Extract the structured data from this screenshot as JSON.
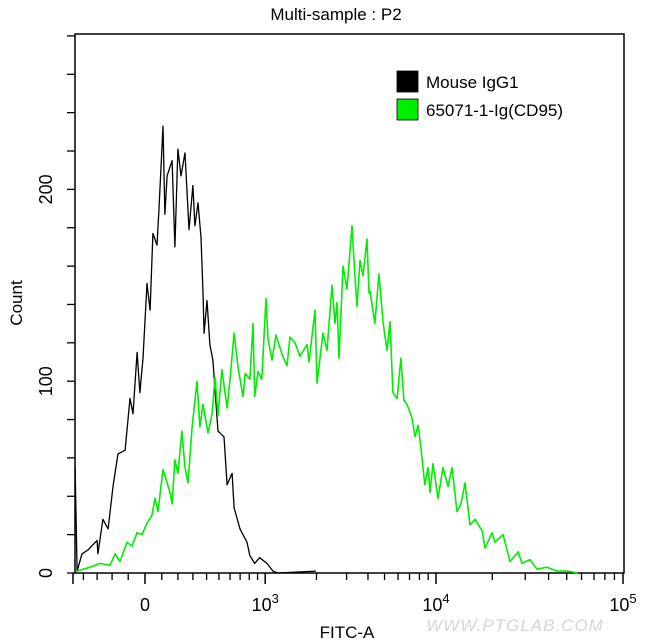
{
  "chart_data": {
    "type": "line",
    "title": "Multi-sample : P2",
    "xlabel": "FITC-A",
    "ylabel": "Count",
    "x_scale": "logicle",
    "xlim": [
      -466,
      100000
    ],
    "ylim": [
      0,
      281
    ],
    "x_ticks": [
      {
        "value": 0,
        "base": "0",
        "exp": ""
      },
      {
        "value": 1000,
        "base": "10",
        "exp": "3"
      },
      {
        "value": 10000,
        "base": "10",
        "exp": "4"
      },
      {
        "value": 100000,
        "base": "10",
        "exp": "5"
      }
    ],
    "y_ticks": [
      {
        "value": 0,
        "label": "0"
      },
      {
        "value": 100,
        "label": "100"
      },
      {
        "value": 200,
        "label": "200"
      }
    ],
    "grid": false,
    "legend_position": "top-right",
    "series": [
      {
        "name": "Mouse IgG1",
        "color": "#000000",
        "x": [
          -466,
          -450,
          -411,
          -366,
          -300,
          -294,
          -260,
          -226,
          -194,
          -163,
          -119,
          -89,
          -71,
          -47,
          -30,
          -12,
          12,
          30,
          47,
          71,
          83,
          107,
          119,
          132,
          163,
          181,
          200,
          220,
          246,
          273,
          300,
          314,
          336,
          358,
          373,
          381,
          403,
          426,
          450,
          492,
          544,
          572,
          619,
          639,
          699,
          775,
          808,
          865,
          926,
          1027,
          1114,
          1191,
          1987
        ],
        "y": [
          55,
          1,
          10,
          12,
          17,
          10,
          28,
          23,
          45,
          62,
          64,
          91,
          83,
          115,
          94,
          112,
          151,
          137,
          177,
          171,
          190,
          233,
          187,
          207,
          215,
          170,
          221,
          207,
          219,
          179,
          202,
          181,
          193,
          175,
          146,
          125,
          142,
          119,
          111,
          74,
          71,
          46,
          52,
          34,
          23,
          16,
          9,
          5,
          8,
          5,
          1,
          0,
          1
        ]
      },
      {
        "name": "65071-1-Ig(CD95)",
        "color": "#00ee00",
        "x": [
          -450,
          -350,
          -280,
          -213,
          -181,
          -150,
          -107,
          -77,
          -47,
          -18,
          12,
          41,
          59,
          77,
          107,
          150,
          163,
          181,
          200,
          226,
          246,
          266,
          294,
          329,
          350,
          373,
          411,
          443,
          467,
          492,
          526,
          572,
          601,
          639,
          679,
          731,
          754,
          808,
          844,
          865,
          906,
          955,
          1013,
          1041,
          1099,
          1160,
          1257,
          1345,
          1400,
          1498,
          1602,
          1760,
          1808,
          1960,
          2013,
          2184,
          2304,
          2464,
          2567,
          2637,
          2710,
          2858,
          3015,
          3225,
          3358,
          3452,
          3595,
          3742,
          3947,
          4057,
          4110,
          4395,
          4637,
          4897,
          5170,
          5380,
          5600,
          5920,
          6230,
          6490,
          6760,
          7230,
          7540,
          7860,
          8170,
          8600,
          8980,
          9220,
          9600,
          10250,
          10900,
          11590,
          12180,
          12950,
          13600,
          14290,
          15200,
          16160,
          17640,
          18290,
          19950,
          20690,
          22820,
          24870,
          27480,
          28820,
          31800,
          34680,
          39200,
          44400,
          50200,
          57400
        ],
        "y": [
          1,
          3,
          5,
          4,
          10,
          6,
          16,
          14,
          21,
          20,
          26,
          30,
          39,
          32,
          54,
          42,
          36,
          59,
          52,
          74,
          55,
          47,
          76,
          100,
          76,
          88,
          73,
          83,
          102,
          82,
          106,
          86,
          102,
          125,
          107,
          92,
          104,
          101,
          130,
          92,
          105,
          101,
          143,
          122,
          111,
          124,
          114,
          108,
          123,
          120,
          113,
          119,
          110,
          137,
          99,
          125,
          116,
          150,
          130,
          141,
          112,
          160,
          148,
          181,
          154,
          139,
          163,
          155,
          174,
          146,
          147,
          130,
          156,
          131,
          116,
          131,
          94,
          91,
          112,
          90,
          88,
          81,
          71,
          77,
          65,
          46,
          55,
          42,
          57,
          39,
          55,
          45,
          55,
          32,
          36,
          47,
          25,
          28,
          22,
          13,
          21,
          16,
          20,
          6,
          11,
          5,
          7,
          2,
          3,
          1,
          1,
          0
        ]
      }
    ]
  },
  "watermark": "WWW.PTGLAB.COM"
}
